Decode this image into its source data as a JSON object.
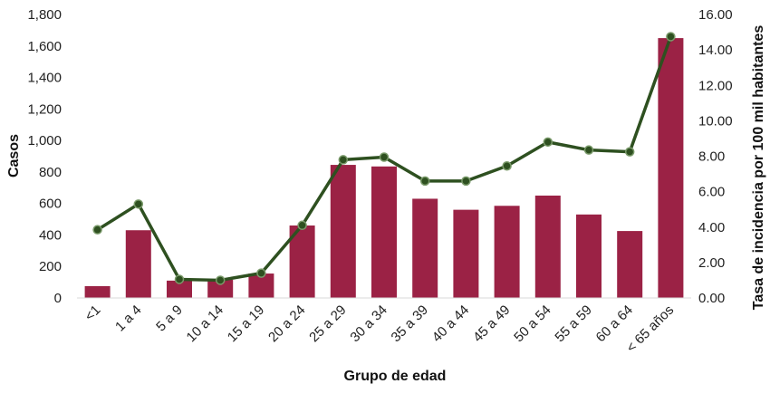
{
  "chart_data": {
    "type": "bar",
    "categories": [
      "<1",
      "1 a 4",
      "5 a 9",
      "10 a 14",
      "15 a 19",
      "20 a 24",
      "25 a 29",
      "30 a 34",
      "35 a 39",
      "40 a 44",
      "45 a 49",
      "50 a 54",
      "55 a 59",
      "60 a 64",
      "< 65 años"
    ],
    "xlabel": "Grupo de edad",
    "ylabel": "Casos",
    "y2label": "Tasa de incidencia por 100 mil habitantes",
    "ylim": [
      0,
      1800
    ],
    "y2lim": [
      0,
      16
    ],
    "yticks": [
      "0",
      "200",
      "400",
      "600",
      "800",
      "1,000",
      "1,200",
      "1,400",
      "1,600",
      "1,800"
    ],
    "y2ticks": [
      "0.00",
      "2.00",
      "4.00",
      "6.00",
      "8.00",
      "10.00",
      "12.00",
      "14.00",
      "16.00"
    ],
    "grid": false,
    "legend": "none",
    "series": [
      {
        "type": "bar",
        "axis": "left",
        "color": "#9b2245",
        "values": [
          75,
          430,
          110,
          115,
          155,
          460,
          845,
          835,
          630,
          560,
          585,
          650,
          530,
          425,
          1650
        ]
      },
      {
        "type": "line",
        "axis": "right",
        "color": "#2e5020",
        "values": [
          3.85,
          5.3,
          1.05,
          1.0,
          1.4,
          4.1,
          7.8,
          7.95,
          6.6,
          6.6,
          7.45,
          8.8,
          8.35,
          8.25,
          14.75
        ]
      }
    ]
  }
}
